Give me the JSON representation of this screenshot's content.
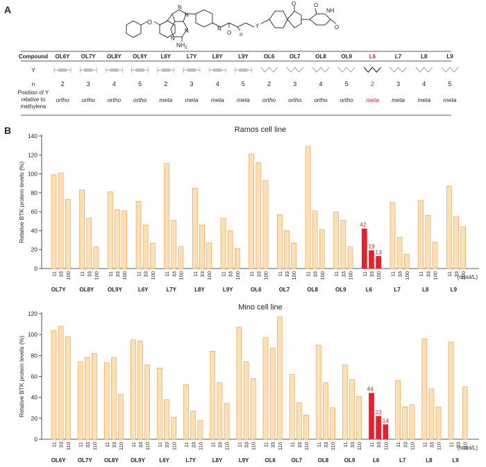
{
  "panels": {
    "a": "A",
    "b": "B"
  },
  "structure": {
    "nh2": "NH",
    "nh2_sub": "2",
    "n_labels": [
      "N",
      "N",
      "N",
      "N",
      "N"
    ],
    "o_labels": [
      "O",
      "O",
      "O",
      "O",
      "O"
    ],
    "nh": "NH",
    "y": "Y",
    "n": "n"
  },
  "table": {
    "headers": [
      "Compound",
      "OL6Y",
      "OL7Y",
      "OL8Y",
      "OL9Y",
      "L6Y",
      "L7Y",
      "L8Y",
      "L9Y",
      "OL6",
      "OL7",
      "OL8",
      "OL9",
      "L6",
      "L7",
      "L8",
      "L9"
    ],
    "highlight_index": 13,
    "highlight_color": "#e8202a",
    "row_y_label": "Y",
    "y_types": [
      "alkyne",
      "alkyne",
      "alkyne",
      "alkyne",
      "alkyne",
      "alkyne",
      "alkyne",
      "alkyne",
      "alkane",
      "alkane",
      "alkane",
      "alkane",
      "alkane",
      "alkane",
      "alkane",
      "alkane"
    ],
    "row_n_label": "n",
    "n_values": [
      "2",
      "3",
      "4",
      "5",
      "2",
      "3",
      "4",
      "5",
      "2",
      "3",
      "4",
      "5",
      "2",
      "3",
      "4",
      "5"
    ],
    "row_pos_label": [
      "Position of Y",
      "relative to",
      "methylene"
    ],
    "positions": [
      "ortho",
      "ortho",
      "ortho",
      "ortho",
      "meta",
      "meta",
      "meta",
      "meta",
      "ortho",
      "ortho",
      "ortho",
      "ortho",
      "meta",
      "meta",
      "meta",
      "meta"
    ]
  },
  "colors": {
    "bar_fill": "#fde0b8",
    "bar_stroke": "#f4a34e",
    "highlight": "#e8202a"
  },
  "chart_data": [
    {
      "type": "bar",
      "title": "Ramos cell line",
      "ylabel": "Relative BTK protein levels (%)",
      "unit_label": "(nmol/L)",
      "ylim": [
        0,
        140
      ],
      "yticks": [
        0,
        20,
        40,
        60,
        80,
        100,
        120,
        140
      ],
      "groups": [
        {
          "label": "OL7Y",
          "conc": [
            "11",
            "33",
            "100"
          ],
          "values": [
            99,
            101,
            73
          ]
        },
        {
          "label": "OL8Y",
          "conc": [
            "11",
            "33",
            "100"
          ],
          "values": [
            83,
            53,
            23
          ]
        },
        {
          "label": "OL9Y",
          "conc": [
            "11",
            "33",
            "100"
          ],
          "values": [
            81,
            62,
            61
          ]
        },
        {
          "label": "L6Y",
          "conc": [
            "11",
            "33",
            "100"
          ],
          "values": [
            71,
            46,
            27
          ]
        },
        {
          "label": "L7Y",
          "conc": [
            "11",
            "33",
            "100"
          ],
          "values": [
            111,
            51,
            23
          ]
        },
        {
          "label": "L8Y",
          "conc": [
            "11",
            "33",
            "100"
          ],
          "values": [
            85,
            46,
            27
          ]
        },
        {
          "label": "L9Y",
          "conc": [
            "11",
            "33",
            "100"
          ],
          "values": [
            53,
            40,
            21
          ]
        },
        {
          "label": "OL6",
          "conc": [
            "11",
            "33",
            "100"
          ],
          "values": [
            121,
            112,
            93
          ]
        },
        {
          "label": "OL7",
          "conc": [
            "11",
            "33",
            "100"
          ],
          "values": [
            57,
            40,
            27
          ]
        },
        {
          "label": "OL8",
          "conc": [
            "11",
            "33",
            "100"
          ],
          "values": [
            129,
            61,
            41
          ]
        },
        {
          "label": "OL9",
          "conc": [
            "11",
            "33",
            "100"
          ],
          "values": [
            60,
            51,
            23
          ]
        },
        {
          "label": "L6",
          "conc": [
            "11",
            "33",
            "100"
          ],
          "values": [
            42,
            19,
            13
          ],
          "highlight": true,
          "data_labels": [
            "42",
            "19",
            "13"
          ]
        },
        {
          "label": "L7",
          "conc": [
            "11",
            "33",
            "100"
          ],
          "values": [
            70,
            33,
            15
          ]
        },
        {
          "label": "L8",
          "conc": [
            "11",
            "33",
            "100"
          ],
          "values": [
            72,
            56,
            28
          ]
        },
        {
          "label": "L9",
          "conc": [
            "11",
            "33",
            "100"
          ],
          "values": [
            87,
            55,
            44
          ]
        }
      ]
    },
    {
      "type": "bar",
      "title": "Mino cell line",
      "ylabel": "Relative BTK protein levels (%)",
      "unit_label": "(nmol/L)",
      "ylim": [
        0,
        120
      ],
      "yticks": [
        0,
        20,
        40,
        60,
        80,
        100,
        120
      ],
      "groups": [
        {
          "label": "OL6Y",
          "conc": [
            "11",
            "33",
            "110"
          ],
          "values": [
            104,
            108,
            98
          ]
        },
        {
          "label": "OL7Y",
          "conc": [
            "11",
            "33",
            "110"
          ],
          "values": [
            74,
            78,
            82
          ]
        },
        {
          "label": "OL8Y",
          "conc": [
            "11",
            "33",
            "110"
          ],
          "values": [
            73,
            78,
            43
          ]
        },
        {
          "label": "OL9Y",
          "conc": [
            "11",
            "33",
            "110"
          ],
          "values": [
            95,
            94,
            71
          ]
        },
        {
          "label": "L6Y",
          "conc": [
            "11",
            "33",
            "110"
          ],
          "values": [
            68,
            38,
            21
          ]
        },
        {
          "label": "L7Y",
          "conc": [
            "11",
            "33",
            "110"
          ],
          "values": [
            52,
            27,
            18
          ]
        },
        {
          "label": "L8Y",
          "conc": [
            "11",
            "33",
            "110"
          ],
          "values": [
            84,
            54,
            34
          ]
        },
        {
          "label": "L9Y",
          "conc": [
            "11",
            "33",
            "110"
          ],
          "values": [
            107,
            74,
            58
          ]
        },
        {
          "label": "OL6",
          "conc": [
            "11",
            "33",
            "110"
          ],
          "values": [
            97,
            87,
            117
          ]
        },
        {
          "label": "OL7",
          "conc": [
            "11",
            "33",
            "110"
          ],
          "values": [
            62,
            35,
            23
          ]
        },
        {
          "label": "OL8",
          "conc": [
            "11",
            "33",
            "110"
          ],
          "values": [
            90,
            54,
            30
          ]
        },
        {
          "label": "OL9",
          "conc": [
            "11",
            "33",
            "110"
          ],
          "values": [
            71,
            57,
            41
          ]
        },
        {
          "label": "L6",
          "conc": [
            "11",
            "33",
            "110"
          ],
          "values": [
            44,
            22,
            14
          ],
          "highlight": true,
          "data_labels": [
            "44",
            "22",
            "14"
          ]
        },
        {
          "label": "L7",
          "conc": [
            "11",
            "33",
            "110"
          ],
          "values": [
            56,
            31,
            33
          ]
        },
        {
          "label": "L8",
          "conc": [
            "11",
            "33",
            "110"
          ],
          "values": [
            96,
            48,
            31
          ]
        },
        {
          "label": "L9",
          "conc": [
            "11",
            "33",
            "110"
          ],
          "values": [
            93,
            null,
            50
          ]
        }
      ]
    }
  ]
}
